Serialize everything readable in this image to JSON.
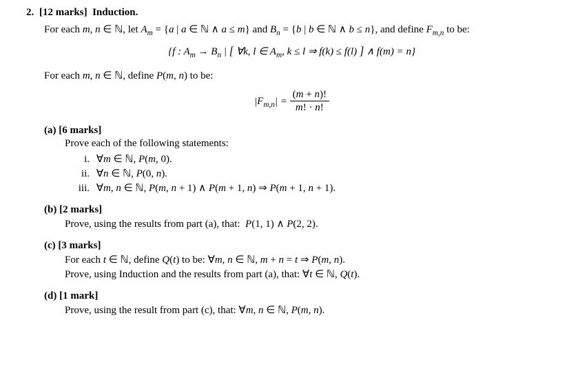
{
  "problem": {
    "number": "2.",
    "marks_label": "[12 marks]",
    "title": "Induction.",
    "intro_html": "For each <span class='math'>m</span>, <span class='math'>n</span> ∈ ℕ, let <span class='math'>A<sub>m</sub></span> = {<span class='math'>a</span> | <span class='math'>a</span> ∈ ℕ ∧ <span class='math'>a</span> ≤ <span class='math'>m</span>} and <span class='math'>B<sub>n</sub></span> = {<span class='math'>b</span> | <span class='math'>b</span> ∈ ℕ ∧ <span class='math'>b</span> ≤ <span class='math'>n</span>}, and define <span class='math'>F<sub>m,n</sub></span> to be:",
    "set_def_html": "{<span class='math'>f</span> : <span class='math'>A<sub>m</sub></span> → <span class='math'>B<sub>n</sub></span> | <span class='big-bracket'>[</span> ∀<span class='math'>k</span>, <span class='math'>l</span> ∈ <span class='math'>A<sub>m</sub></span>, <span class='math'>k</span> ≤ <span class='math'>l</span> ⇒ <span class='math'>f</span>(<span class='math'>k</span>) ≤ <span class='math'>f</span>(<span class='math'>l</span>) <span class='big-bracket'>]</span> ∧ <span class='math'>f</span>(<span class='math'>m</span>) = <span class='math'>n</span>}",
    "define_p_html": "For each <span class='math'>m</span>, <span class='math'>n</span> ∈ ℕ, define <span class='math'>P</span>(<span class='math'>m</span>, <span class='math'>n</span>) to be:",
    "p_formula": {
      "lhs_html": "|<span class='math'>F<sub>m,n</sub></span>| = ",
      "frac_num_html": "(<span class='math'>m</span> + <span class='math'>n</span>)!",
      "frac_den_html": "<span class='math'>m</span>! · <span class='math'>n</span>!"
    }
  },
  "parts": {
    "a": {
      "label": "(a)",
      "marks": "[6 marks]",
      "prompt": "Prove each of the following statements:",
      "items": [
        {
          "num": "i.",
          "html": "∀<span class='math'>m</span> ∈ ℕ, <span class='math'>P</span>(<span class='math'>m</span>, 0)."
        },
        {
          "num": "ii.",
          "html": "∀<span class='math'>n</span> ∈ ℕ, <span class='math'>P</span>(0, <span class='math'>n</span>)."
        },
        {
          "num": "iii.",
          "html": "∀<span class='math'>m</span>, <span class='math'>n</span> ∈ ℕ, <span class='math'>P</span>(<span class='math'>m</span>, <span class='math'>n</span> + 1) ∧ <span class='math'>P</span>(<span class='math'>m</span> + 1, <span class='math'>n</span>) ⇒ <span class='math'>P</span>(<span class='math'>m</span> + 1, <span class='math'>n</span> + 1)."
        }
      ]
    },
    "b": {
      "label": "(b)",
      "marks": "[2 marks]",
      "prompt_html": "Prove, using the results from part (a), that: &nbsp;<span class='math'>P</span>(1, 1) ∧ <span class='math'>P</span>(2, 2)."
    },
    "c": {
      "label": "(c)",
      "marks": "[3 marks]",
      "line1_html": "For each <span class='math'>t</span> ∈ ℕ, define <span class='math'>Q</span>(<span class='math'>t</span>) to be: ∀<span class='math'>m</span>, <span class='math'>n</span> ∈ ℕ, <span class='math'>m</span> + <span class='math'>n</span> = <span class='math'>t</span> ⇒ <span class='math'>P</span>(<span class='math'>m</span>, <span class='math'>n</span>).",
      "line2_html": "Prove, using Induction and the results from part (a), that: ∀<span class='math'>t</span> ∈ ℕ, <span class='math'>Q</span>(<span class='math'>t</span>)."
    },
    "d": {
      "label": "(d)",
      "marks": "[1 mark]",
      "prompt_html": "Prove, using the result from part (c), that: ∀<span class='math'>m</span>, <span class='math'>n</span> ∈ ℕ, <span class='math'>P</span>(<span class='math'>m</span>, <span class='math'>n</span>)."
    }
  }
}
